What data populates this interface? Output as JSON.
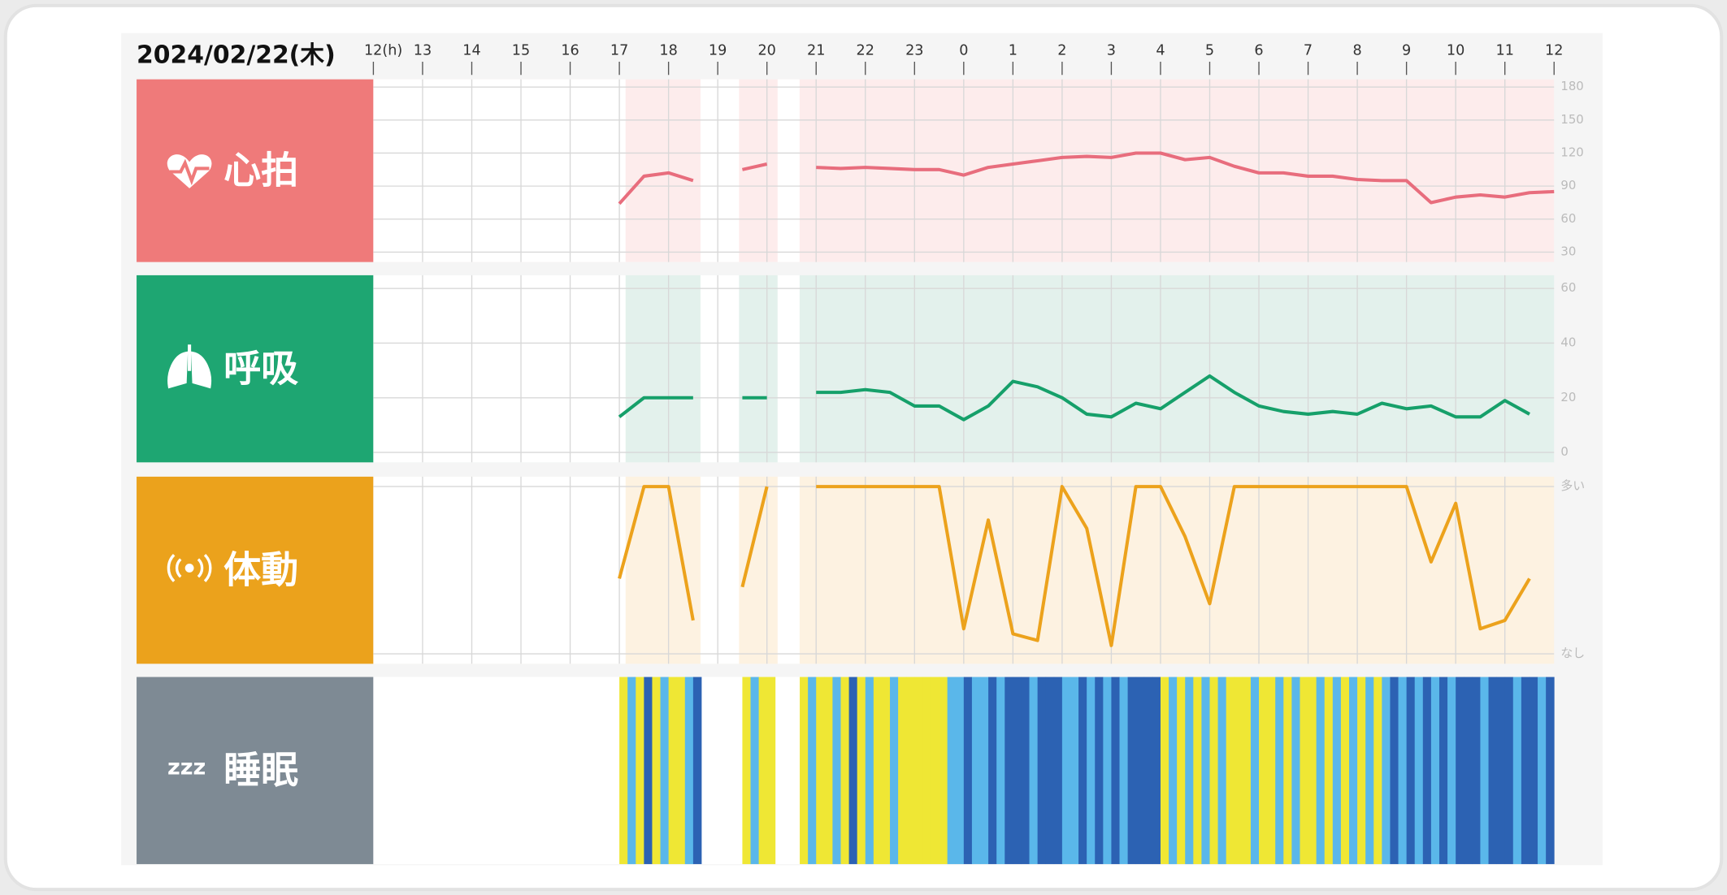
{
  "header": {
    "date": "2024/02/22(木)"
  },
  "time_axis": {
    "labels": [
      "12(h)",
      "13",
      "14",
      "15",
      "16",
      "17",
      "18",
      "19",
      "20",
      "21",
      "22",
      "23",
      "0",
      "1",
      "2",
      "3",
      "4",
      "5",
      "6",
      "7",
      "8",
      "9",
      "10",
      "11",
      "12"
    ]
  },
  "chart_data": [
    {
      "type": "line",
      "title": "心拍",
      "color": "#e86d7d",
      "label_color": "#ef7a7a",
      "background": "#fdecec",
      "ylim": [
        30,
        180
      ],
      "yticks": [
        30,
        60,
        90,
        120,
        150,
        180
      ],
      "values": [
        74,
        99,
        102,
        95,
        null,
        105,
        110,
        null,
        107,
        106,
        107,
        106,
        105,
        105,
        100,
        107,
        110,
        113,
        116,
        117,
        116,
        120,
        120,
        114,
        116,
        108,
        102,
        102,
        99,
        99,
        96,
        95,
        95,
        75,
        80,
        82,
        80,
        84,
        85
      ]
    },
    {
      "type": "line",
      "title": "呼吸",
      "color": "#16a06a",
      "label_color": "#1ea672",
      "background": "#e3f1ec",
      "ylim": [
        0,
        60
      ],
      "yticks": [
        0,
        20,
        40,
        60
      ],
      "values": [
        13,
        20,
        20,
        20,
        null,
        20,
        20,
        null,
        22,
        22,
        23,
        22,
        17,
        17,
        12,
        17,
        26,
        24,
        20,
        14,
        13,
        18,
        16,
        22,
        28,
        22,
        17,
        15,
        14,
        15,
        14,
        18,
        16,
        17,
        13,
        13,
        19,
        14,
        null
      ]
    },
    {
      "type": "line",
      "title": "体動",
      "color": "#eca21c",
      "label_color": "#eba21c",
      "background": "#fdf2e1",
      "ylim": [
        0,
        100
      ],
      "yticks": [
        {
          "value": 0,
          "label": "なし"
        },
        {
          "value": 100,
          "label": "多い"
        }
      ],
      "values": [
        45,
        100,
        100,
        20,
        null,
        40,
        100,
        null,
        100,
        100,
        100,
        100,
        100,
        100,
        15,
        80,
        12,
        8,
        100,
        75,
        5,
        100,
        100,
        70,
        30,
        100,
        100,
        100,
        100,
        100,
        100,
        100,
        100,
        55,
        90,
        15,
        20,
        45,
        null
      ]
    },
    {
      "type": "stripes",
      "title": "睡眠",
      "label_color": "#7e8a94",
      "level_colors": [
        "#efe734",
        "#5ab7ea",
        "#2c62b3"
      ],
      "values": [
        0,
        1,
        0,
        2,
        0,
        1,
        0,
        0,
        1,
        2,
        null,
        null,
        null,
        null,
        null,
        0,
        1,
        0,
        0,
        null,
        null,
        null,
        0,
        1,
        0,
        0,
        1,
        0,
        2,
        0,
        1,
        0,
        0,
        1,
        0,
        0,
        0,
        0,
        0,
        0,
        1,
        1,
        2,
        1,
        1,
        2,
        1,
        2,
        2,
        2,
        1,
        2,
        2,
        2,
        1,
        1,
        2,
        1,
        2,
        1,
        2,
        1,
        2,
        2,
        2,
        2,
        0,
        1,
        0,
        1,
        0,
        1,
        0,
        1,
        0,
        0,
        0,
        1,
        0,
        0,
        1,
        0,
        1,
        0,
        0,
        1,
        0,
        1,
        0,
        1,
        0,
        1,
        0,
        1,
        2,
        1,
        2,
        1,
        2,
        1,
        2,
        1,
        2,
        2,
        2,
        1,
        2,
        2,
        2,
        1,
        2,
        2,
        1,
        2
      ]
    }
  ]
}
